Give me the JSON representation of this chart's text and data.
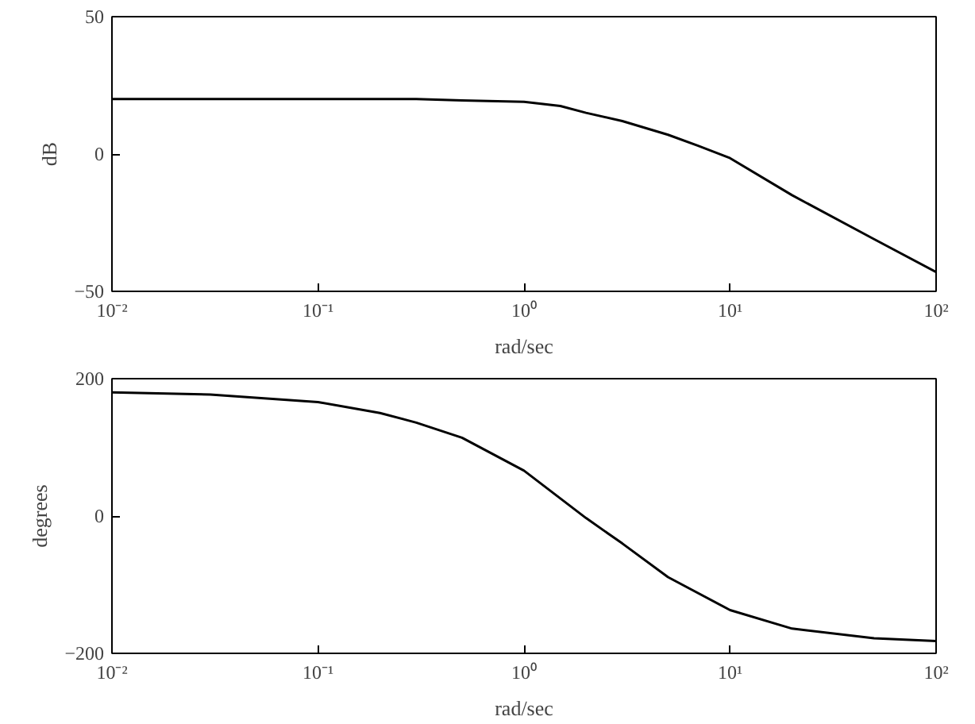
{
  "chart_data": [
    {
      "type": "line",
      "xlabel": "rad/sec",
      "ylabel": "dB",
      "log": "x",
      "grid": false,
      "line_style": "solid",
      "marker": "none",
      "x": [
        0.01,
        0.03,
        0.1,
        0.3,
        0.5,
        1,
        1.5,
        2,
        3,
        5,
        7,
        10,
        20,
        50,
        100
      ],
      "series": [
        {
          "color": "#000000",
          "values": [
            20,
            20,
            20,
            20,
            19.5,
            19,
            17.5,
            15,
            12,
            7,
            3,
            -1.5,
            -15,
            -31,
            -43
          ]
        }
      ],
      "xlim": [
        0.01,
        100
      ],
      "xticks": [
        {
          "value": 0.01,
          "label": "10⁻²"
        },
        {
          "value": 0.1,
          "label": "10⁻¹"
        },
        {
          "value": 1,
          "label": "10⁰"
        },
        {
          "value": 10,
          "label": "10¹"
        },
        {
          "value": 100,
          "label": "10²"
        }
      ],
      "ylim": [
        -50,
        50
      ],
      "yticks": [
        -50,
        0,
        50
      ]
    },
    {
      "type": "line",
      "xlabel": "rad/sec",
      "ylabel": "degrees",
      "log": "x",
      "grid": false,
      "line_style": "solid",
      "marker": "none",
      "x": [
        0.01,
        0.03,
        0.1,
        0.2,
        0.3,
        0.5,
        1,
        2,
        3,
        5,
        10,
        20,
        50,
        100
      ],
      "series": [
        {
          "color": "#000000",
          "values": [
            180,
            177,
            166,
            150,
            136,
            114,
            66,
            -3,
            -40,
            -89,
            -137,
            -164,
            -178,
            -182
          ]
        }
      ],
      "xlim": [
        0.01,
        100
      ],
      "xticks": [
        {
          "value": 0.01,
          "label": "10⁻²"
        },
        {
          "value": 0.1,
          "label": "10⁻¹"
        },
        {
          "value": 1,
          "label": "10⁰"
        },
        {
          "value": 10,
          "label": "10¹"
        },
        {
          "value": 100,
          "label": "10²"
        }
      ],
      "ylim": [
        -200,
        200
      ],
      "yticks": [
        -200,
        0,
        200
      ]
    }
  ]
}
